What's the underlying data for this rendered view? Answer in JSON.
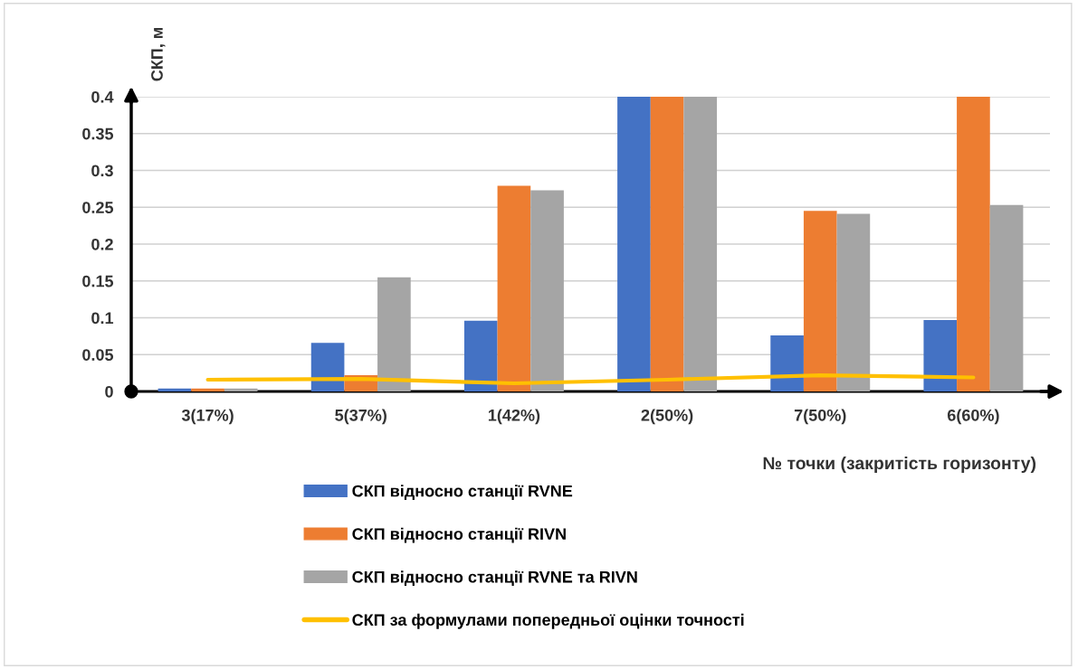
{
  "chart_data": {
    "type": "bar",
    "ylabel": "СКП, м",
    "xlabel": "№ точки (закритість горизонту)",
    "categories": [
      "3(17%)",
      "5(37%)",
      "1(42%)",
      "2(50%)",
      "7(50%)",
      "6(60%)"
    ],
    "series": [
      {
        "name": "СКП відносно станції RVNE",
        "color": "#4472c4",
        "values": [
          0.004,
          0.066,
          0.096,
          0.4,
          0.076,
          0.097
        ]
      },
      {
        "name": "СКП відносно станції RIVN",
        "color": "#ed7d31",
        "values": [
          0.004,
          0.022,
          0.279,
          0.4,
          0.245,
          0.4
        ]
      },
      {
        "name": "СКП відносно станції RVNE та RIVN",
        "color": "#a5a5a5",
        "values": [
          0.004,
          0.155,
          0.273,
          0.4,
          0.241,
          0.253
        ]
      },
      {
        "name": "СКП за формулами попередньої оцінки точності",
        "type": "line",
        "color": "#ffc000",
        "values": [
          0.016,
          0.017,
          0.011,
          0.016,
          0.022,
          0.019
        ]
      }
    ],
    "ylim": [
      0,
      0.4
    ],
    "yticks": [
      0,
      0.05,
      0.1,
      0.15,
      0.2,
      0.25,
      0.3,
      0.35,
      0.4
    ],
    "grid": "y",
    "legend": "bottom"
  }
}
